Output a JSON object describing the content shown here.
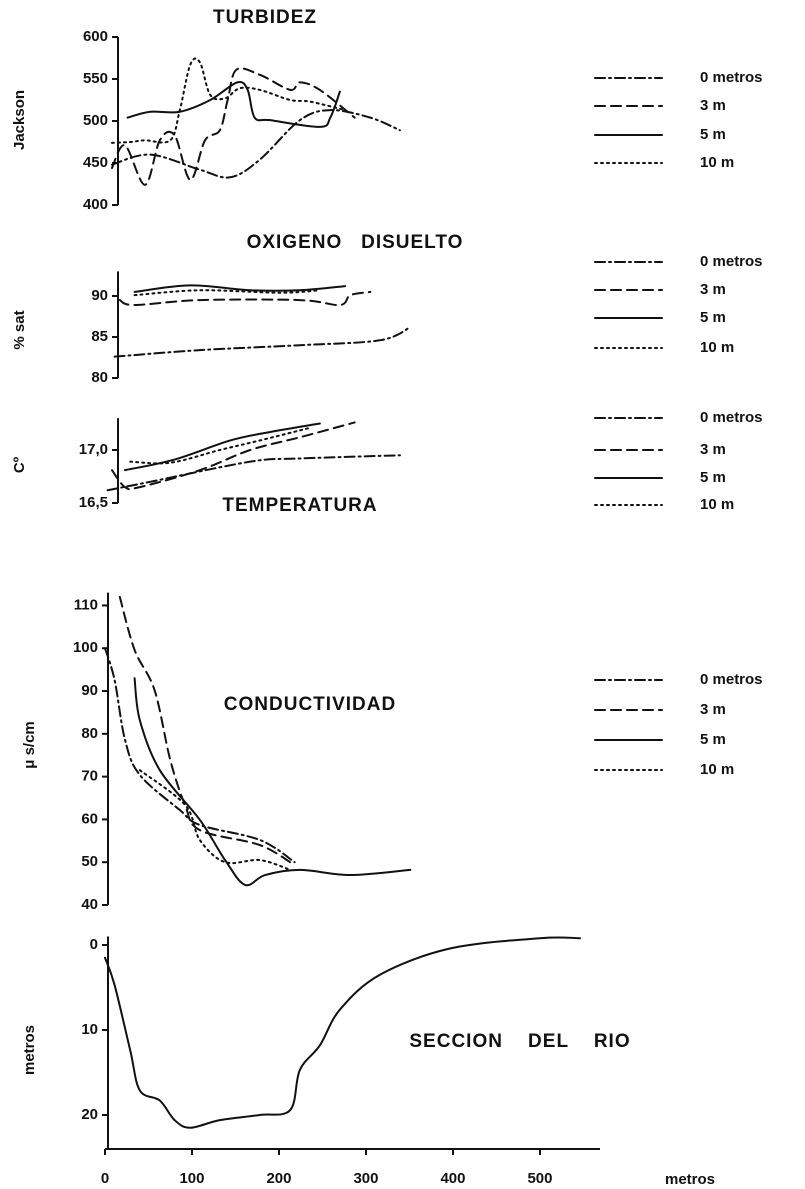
{
  "chart_data": [
    {
      "type": "line",
      "title": "TURBIDEZ",
      "ylabel": "Jackson",
      "xlim": [
        0,
        569
      ],
      "ylim": [
        400,
        600
      ],
      "yticks": [
        400,
        450,
        500,
        550,
        600
      ],
      "series": [
        {
          "name": "0 metros",
          "style": "dashdot",
          "color": "#111",
          "x": [
            8,
            52,
            109,
            144,
            178,
            224,
            259,
            305,
            339
          ],
          "values": [
            448,
            460,
            442,
            433,
            454,
            501,
            513,
            504,
            489
          ]
        },
        {
          "name": "3 m",
          "style": "dashed",
          "color": "#111",
          "x": [
            8,
            23,
            46,
            63,
            80,
            98,
            115,
            132,
            141,
            151,
            178,
            213,
            224,
            247,
            287
          ],
          "values": [
            444,
            471,
            424,
            477,
            483,
            430,
            477,
            489,
            525,
            561,
            555,
            537,
            546,
            537,
            504
          ]
        },
        {
          "name": "5 m",
          "style": "solid",
          "color": "#111",
          "x": [
            26,
            52,
            86,
            121,
            152,
            164,
            172,
            190,
            247,
            259,
            270
          ],
          "values": [
            504,
            511,
            511,
            525,
            546,
            537,
            504,
            501,
            493,
            504,
            535
          ]
        },
        {
          "name": "10 m",
          "style": "dotted",
          "color": "#111",
          "x": [
            8,
            29,
            46,
            75,
            86,
            98,
            109,
            121,
            138,
            155,
            178,
            213,
            236,
            276
          ],
          "values": [
            474,
            475,
            477,
            477,
            513,
            567,
            570,
            531,
            527,
            539,
            537,
            525,
            523,
            513
          ]
        }
      ]
    },
    {
      "type": "line",
      "title": "OXIGENO   DISUELTO",
      "ylabel": "% sat",
      "xlim": [
        0,
        569
      ],
      "ylim": [
        80,
        93
      ],
      "yticks": [
        80,
        85,
        90
      ],
      "series": [
        {
          "name": "0 metros",
          "style": "dashdot",
          "color": "#111",
          "x": [
            11,
            109,
            224,
            316,
            351
          ],
          "values": [
            82.6,
            83.4,
            84.0,
            84.6,
            86.2
          ]
        },
        {
          "name": "3 m",
          "style": "dashed",
          "color": "#111",
          "x": [
            17,
            34,
            109,
            224,
            270,
            282,
            305
          ],
          "values": [
            89.5,
            88.9,
            89.5,
            89.5,
            88.9,
            90.1,
            90.5
          ]
        },
        {
          "name": "5 m",
          "style": "solid",
          "color": "#111",
          "x": [
            34,
            98,
            167,
            224,
            276
          ],
          "values": [
            90.5,
            91.3,
            90.7,
            90.7,
            91.2
          ]
        },
        {
          "name": "10 m",
          "style": "dotted",
          "color": "#111",
          "x": [
            34,
            109,
            201,
            247
          ],
          "values": [
            90.1,
            90.7,
            90.4,
            90.7
          ]
        }
      ]
    },
    {
      "type": "line",
      "title": "TEMPERATURA",
      "ylabel": "Cº",
      "xlim": [
        0,
        569
      ],
      "ylim": [
        16.5,
        17.3
      ],
      "yticks": [
        {
          "value": 16.5,
          "label": "16,5"
        },
        {
          "value": 17,
          "label": "17,0"
        }
      ],
      "series": [
        {
          "name": "0 metros",
          "style": "dashdot",
          "color": "#111",
          "x": [
            3,
            52,
            167,
            224,
            339
          ],
          "values": [
            16.62,
            16.7,
            16.89,
            16.92,
            16.95
          ]
        },
        {
          "name": "3 m",
          "style": "dashed",
          "color": "#111",
          "x": [
            8,
            23,
            40,
            109,
            167,
            224,
            287
          ],
          "values": [
            16.81,
            16.65,
            16.65,
            16.81,
            17.0,
            17.12,
            17.26
          ]
        },
        {
          "name": "5 m",
          "style": "solid",
          "color": "#111",
          "x": [
            23,
            80,
            144,
            190,
            247
          ],
          "values": [
            16.81,
            16.91,
            17.09,
            17.17,
            17.25
          ]
        },
        {
          "name": "10 m",
          "style": "dotted",
          "color": "#111",
          "x": [
            29,
            75,
            132,
            178,
            236
          ],
          "values": [
            16.89,
            16.88,
            17.0,
            17.09,
            17.21
          ]
        }
      ]
    },
    {
      "type": "line",
      "title": "CONDUCTIVIDAD",
      "ylabel": "μ s/cm",
      "xlim": [
        0,
        569
      ],
      "ylim": [
        40,
        113
      ],
      "yticks": [
        40,
        50,
        60,
        70,
        80,
        90,
        100,
        110
      ],
      "series": [
        {
          "name": "0 metros",
          "style": "dashdot",
          "color": "#111",
          "x": [
            0,
            11,
            23,
            40,
            86,
            109,
            178,
            218
          ],
          "values": [
            100,
            92.6,
            78.6,
            70.4,
            62.2,
            58.7,
            55.2,
            50
          ]
        },
        {
          "name": "3 m",
          "style": "dashed",
          "color": "#111",
          "x": [
            17,
            34,
            57,
            75,
            92,
            109,
            178,
            218
          ],
          "values": [
            112,
            99.6,
            90.2,
            73.9,
            63.4,
            57.5,
            54,
            49.3
          ]
        },
        {
          "name": "5 m",
          "style": "solid",
          "color": "#111",
          "x": [
            34,
            40,
            63,
            109,
            138,
            161,
            184,
            224,
            282,
            351
          ],
          "values": [
            93,
            83.2,
            71.5,
            59.9,
            50.5,
            44.7,
            47,
            48.2,
            47,
            48.2
          ]
        },
        {
          "name": "10 m",
          "style": "dotted",
          "color": "#111",
          "x": [
            40,
            92,
            109,
            138,
            178,
            213
          ],
          "values": [
            71.5,
            63.4,
            55.2,
            50,
            50.5,
            48.2
          ]
        }
      ]
    },
    {
      "type": "line",
      "title": "SECCION    DEL    RIO",
      "ylabel": "metros",
      "xlabel": "metros",
      "xlim": [
        0,
        569
      ],
      "xticks": [
        0,
        100,
        200,
        300,
        400,
        500
      ],
      "ylim": [
        24,
        -1
      ],
      "yticks": [
        0,
        10,
        20
      ],
      "series": [
        {
          "style": "solid",
          "color": "#111",
          "x": [
            0,
            11,
            29,
            40,
            63,
            80,
            98,
            132,
            178,
            213,
            224,
            247,
            270,
            316,
            397,
            500,
            546
          ],
          "values": [
            1.5,
            4.7,
            12.4,
            17.1,
            18.3,
            20.6,
            21.5,
            20.6,
            20,
            19.4,
            14.7,
            11.8,
            7.6,
            3.5,
            0.4,
            -0.8,
            -0.8
          ]
        }
      ]
    }
  ]
}
